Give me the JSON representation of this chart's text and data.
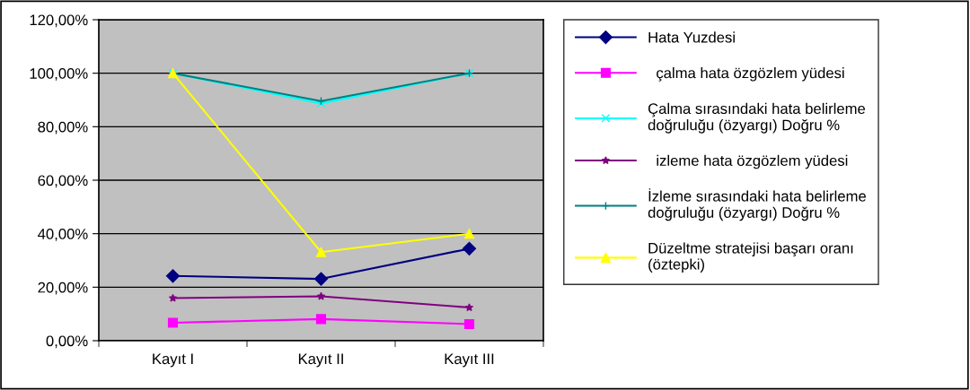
{
  "chart_data": {
    "type": "line",
    "categories": [
      "Kayıt I",
      "Kayıt II",
      "Kayıt III"
    ],
    "series": [
      {
        "name": "Hata Yuzdesi",
        "color": "#000080",
        "marker": "diamond",
        "values": [
          24.2,
          23.1,
          34.4
        ]
      },
      {
        "name": "  çalma hata özgözlem yüdesi",
        "color": "#ff00ff",
        "marker": "square",
        "values": [
          6.7,
          8.1,
          6.2
        ]
      },
      {
        "name": "Çalma sırasındaki hata belirleme\ndoğruluğu (özyargı) Doğru %",
        "color": "#00ffff",
        "marker": "cross",
        "values": [
          100,
          88.7,
          100
        ]
      },
      {
        "name": "  izleme hata özgözlem yüdesi",
        "color": "#800080",
        "marker": "star",
        "values": [
          15.9,
          16.6,
          12.4
        ]
      },
      {
        "name": "İzleme sırasındaki hata belirleme\ndoğruluğu (özyargı) Doğru %",
        "color": "#008080",
        "marker": "plus",
        "values": [
          100,
          89.6,
          100
        ]
      },
      {
        "name": "Düzeltme stratejisi başarı oranı\n(öztepki)",
        "color": "#ffff00",
        "marker": "triangle",
        "values": [
          100,
          33.1,
          40
        ]
      }
    ],
    "ylim": [
      0,
      120
    ],
    "yticks": [
      {
        "value": 0,
        "label": "0,00%"
      },
      {
        "value": 20,
        "label": "20,00%"
      },
      {
        "value": 40,
        "label": "40,00%"
      },
      {
        "value": 60,
        "label": "60,00%"
      },
      {
        "value": 80,
        "label": "80,00%"
      },
      {
        "value": 100,
        "label": "100,00%"
      },
      {
        "value": 120,
        "label": "120,00%"
      }
    ],
    "grid": "y",
    "legend": "right",
    "line_style": "solid"
  }
}
